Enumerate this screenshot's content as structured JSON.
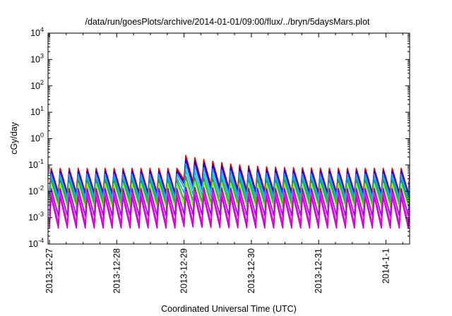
{
  "chart_data": {
    "type": "line",
    "title": "/data/run/goesPlots/archive/2014-01-01/09:00/flux/../bryn/5daysMars.plot",
    "xlabel": "Coordinated Universal Time (UTC)",
    "ylabel": "cGy/day",
    "y_scale": "log",
    "ylim_exp": [
      -4,
      4
    ],
    "y_ticks": [
      {
        "base": "10",
        "exp": "-4"
      },
      {
        "base": "10",
        "exp": "-3"
      },
      {
        "base": "10",
        "exp": "-2"
      },
      {
        "base": "10",
        "exp": "-1"
      },
      {
        "base": "10",
        "exp": "0"
      },
      {
        "base": "10",
        "exp": "1"
      },
      {
        "base": "10",
        "exp": "2"
      },
      {
        "base": "10",
        "exp": "3"
      },
      {
        "base": "10",
        "exp": "4"
      }
    ],
    "x_range_days": [
      0,
      5.88
    ],
    "x_ticks": [
      {
        "label": "2013-12-27",
        "day": 0
      },
      {
        "label": "2013-12-28",
        "day": 1
      },
      {
        "label": "2013-12-29",
        "day": 2
      },
      {
        "label": "2013-12-30",
        "day": 3
      },
      {
        "label": "2013-12-31",
        "day": 4
      },
      {
        "label": "2014-1-1",
        "day": 5
      }
    ],
    "sawtooth_period_days": 0.1333,
    "event": {
      "start_day": 1.95,
      "decay_days": 0.45
    },
    "grid": false,
    "legend": "none",
    "series": [
      {
        "color": "#ff0000",
        "peak": 0.075,
        "trough": 0.009,
        "event_peak": 0.26
      },
      {
        "color": "#c00000",
        "peak": 0.065,
        "trough": 0.008,
        "event_peak": 0.22
      },
      {
        "color": "#0000ff",
        "peak": 0.058,
        "trough": 0.007,
        "event_peak": 0.18
      },
      {
        "color": "#1e90ff",
        "peak": 0.045,
        "trough": 0.006,
        "event_peak": 0.12
      },
      {
        "color": "#00bfbf",
        "peak": 0.034,
        "trough": 0.0045,
        "event_peak": 0.07
      },
      {
        "color": "#2e8b57",
        "peak": 0.026,
        "trough": 0.0032,
        "event_peak": 0.04
      },
      {
        "color": "#7cfc00",
        "peak": 0.02,
        "trough": 0.0025,
        "event_peak": 0.025
      },
      {
        "color": "#8b00ff",
        "peak": 0.013,
        "trough": 0.0012,
        "event_peak": 0.015
      },
      {
        "color": "#ff00ff",
        "peak": 0.009,
        "trough": 0.0006,
        "event_peak": 0.01
      },
      {
        "color": "#cc00cc",
        "peak": 0.006,
        "trough": 0.0004,
        "event_peak": 0.007
      }
    ]
  }
}
